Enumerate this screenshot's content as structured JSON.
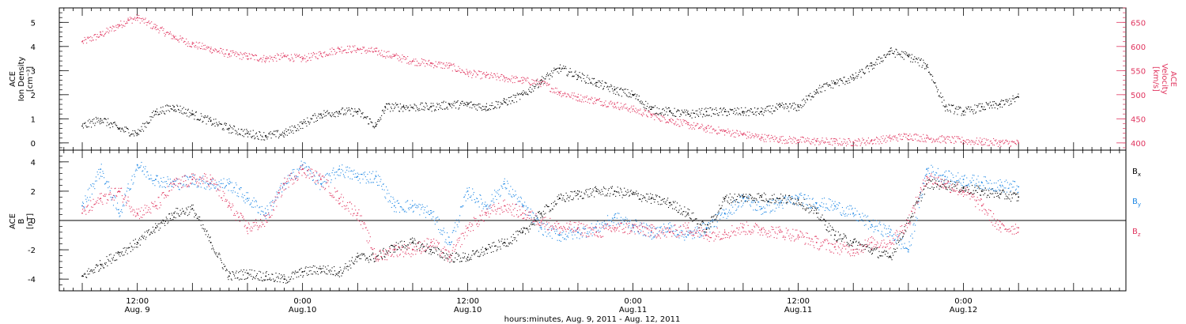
{
  "chart_data": [
    {
      "type": "scatter",
      "panel": "top",
      "ylabel_lines": [
        "ACE",
        "Ion Density",
        "[cm⁻³]"
      ],
      "ylim": [
        -0.3,
        5.6
      ],
      "yticks": [
        0,
        1,
        2,
        3,
        4,
        5
      ],
      "y2label_lines": [
        "ACE",
        "Velocity",
        "[km/s]"
      ],
      "y2lim": [
        385,
        680
      ],
      "y2ticks": [
        400,
        450,
        500,
        550,
        600,
        650
      ],
      "colors": {
        "density": "#000000",
        "velocity": "#e0355f"
      },
      "series": [
        {
          "name": "Ion Density",
          "axis": "left",
          "x": [
            0,
            2,
            4,
            6,
            8,
            10,
            12,
            14,
            16,
            18,
            20,
            22,
            24,
            26,
            28,
            30,
            32,
            33,
            35,
            38,
            40,
            42,
            44,
            46,
            48,
            50,
            52,
            54,
            56,
            58,
            60,
            62,
            64,
            66,
            68,
            70,
            72,
            74,
            76,
            78,
            80,
            82,
            84,
            86,
            88,
            90,
            92,
            94,
            96,
            98,
            100,
            102
          ],
          "y": [
            0.7,
            1.0,
            0.6,
            0.4,
            1.3,
            1.5,
            1.2,
            0.9,
            0.6,
            0.4,
            0.3,
            0.4,
            0.8,
            1.2,
            1.3,
            1.3,
            0.7,
            1.5,
            1.5,
            1.5,
            1.6,
            1.6,
            1.5,
            1.7,
            2.0,
            2.6,
            3.1,
            2.8,
            2.5,
            2.2,
            2.0,
            1.4,
            1.3,
            1.2,
            1.3,
            1.3,
            1.3,
            1.3,
            1.5,
            1.5,
            2.2,
            2.5,
            2.7,
            3.2,
            3.8,
            3.6,
            3.2,
            1.5,
            1.3,
            1.5,
            1.6,
            1.9
          ]
        },
        {
          "name": "Velocity",
          "axis": "right",
          "x": [
            0,
            2,
            4,
            5,
            6,
            8,
            10,
            12,
            14,
            16,
            18,
            20,
            22,
            24,
            26,
            28,
            30,
            32,
            34,
            36,
            38,
            40,
            42,
            44,
            46,
            48,
            50,
            52,
            54,
            56,
            58,
            60,
            62,
            64,
            66,
            68,
            70,
            72,
            74,
            76,
            78,
            80,
            82,
            84,
            86,
            88,
            90,
            92,
            94,
            96,
            98,
            100,
            102
          ],
          "y": [
            610,
            625,
            645,
            655,
            660,
            640,
            620,
            605,
            595,
            585,
            580,
            575,
            580,
            575,
            585,
            595,
            595,
            590,
            580,
            570,
            565,
            560,
            545,
            540,
            535,
            530,
            525,
            505,
            495,
            488,
            480,
            470,
            458,
            448,
            438,
            430,
            424,
            418,
            412,
            408,
            406,
            404,
            403,
            402,
            405,
            410,
            415,
            410,
            408,
            405,
            403,
            401,
            400
          ]
        }
      ]
    },
    {
      "type": "scatter",
      "panel": "bottom",
      "ylabel_lines": [
        "ACE",
        "B",
        "[nT]"
      ],
      "ylim": [
        -4.8,
        4.8
      ],
      "yticks": [
        -4,
        -2,
        0,
        2,
        4
      ],
      "legend_position": "right",
      "colors": {
        "Bx": "#000000",
        "By": "#1f88e5",
        "Bz": "#e0355f"
      },
      "series": [
        {
          "name": "Bx",
          "label_main": "B",
          "label_sub": "x",
          "x": [
            0,
            2,
            4,
            6,
            8,
            10,
            12,
            14,
            16,
            18,
            20,
            22,
            24,
            26,
            28,
            30,
            32,
            34,
            36,
            38,
            40,
            42,
            44,
            46,
            48,
            50,
            52,
            54,
            56,
            58,
            60,
            62,
            64,
            66,
            68,
            70,
            72,
            74,
            76,
            78,
            80,
            82,
            84,
            86,
            88,
            90,
            92,
            94,
            96,
            98,
            100,
            102
          ],
          "y": [
            -3.8,
            -3.0,
            -2.2,
            -1.5,
            -0.5,
            0.5,
            0.8,
            -1.5,
            -3.8,
            -3.6,
            -3.8,
            -4.0,
            -3.5,
            -3.3,
            -3.5,
            -2.5,
            -2.5,
            -1.8,
            -1.5,
            -2.0,
            -2.5,
            -2.5,
            -2.0,
            -1.5,
            -0.8,
            0.5,
            1.5,
            1.8,
            2.0,
            2.0,
            1.8,
            1.5,
            1.2,
            0.5,
            -0.6,
            1.5,
            1.6,
            1.6,
            1.5,
            1.4,
            0.5,
            -1.0,
            -1.5,
            -2.0,
            -2.5,
            0.0,
            2.5,
            2.5,
            2.2,
            2.0,
            1.8,
            1.6
          ]
        },
        {
          "name": "By",
          "label_main": "B",
          "label_sub": "y",
          "x": [
            0,
            2,
            4,
            6,
            8,
            10,
            12,
            14,
            16,
            18,
            20,
            22,
            24,
            26,
            28,
            30,
            32,
            34,
            36,
            38,
            40,
            42,
            44,
            46,
            48,
            50,
            52,
            54,
            56,
            58,
            60,
            62,
            64,
            66,
            68,
            70,
            72,
            74,
            76,
            78,
            80,
            82,
            84,
            86,
            88,
            90,
            92,
            94,
            96,
            98,
            100,
            102
          ],
          "y": [
            1.0,
            3.5,
            0.5,
            3.8,
            2.8,
            2.5,
            2.8,
            2.5,
            2.5,
            1.5,
            0.5,
            2.5,
            3.8,
            2.5,
            3.5,
            3.0,
            3.0,
            1.0,
            1.0,
            0.5,
            -1.5,
            2.0,
            1.0,
            2.5,
            1.0,
            -0.5,
            -1.0,
            -0.8,
            -0.5,
            0.2,
            -0.3,
            -0.8,
            -0.5,
            -1.0,
            -0.5,
            0.5,
            1.5,
            0.8,
            1.2,
            1.5,
            1.2,
            1.0,
            0.5,
            -0.3,
            -0.8,
            -2.0,
            3.5,
            3.0,
            2.8,
            2.6,
            2.4,
            2.3
          ]
        },
        {
          "name": "Bz",
          "label_main": "B",
          "label_sub": "z",
          "x": [
            0,
            2,
            4,
            6,
            8,
            10,
            12,
            14,
            16,
            18,
            20,
            22,
            24,
            26,
            28,
            30,
            32,
            34,
            36,
            38,
            40,
            42,
            44,
            46,
            48,
            50,
            52,
            54,
            56,
            58,
            60,
            62,
            64,
            66,
            68,
            70,
            72,
            74,
            76,
            78,
            80,
            82,
            84,
            86,
            88,
            90,
            92,
            94,
            96,
            98,
            100,
            102
          ],
          "y": [
            0.5,
            1.5,
            2.0,
            0.5,
            1.0,
            2.5,
            2.8,
            2.8,
            1.0,
            -0.5,
            0.0,
            2.5,
            3.5,
            2.8,
            1.5,
            0.5,
            -2.5,
            -2.0,
            -2.0,
            -1.5,
            -2.5,
            -0.5,
            0.5,
            1.0,
            0.5,
            0.0,
            -0.5,
            -0.5,
            -0.8,
            -0.5,
            -0.5,
            -0.7,
            -0.8,
            -0.5,
            -1.0,
            -0.8,
            -0.5,
            -0.6,
            -0.8,
            -1.0,
            -1.5,
            -1.8,
            -2.0,
            -1.5,
            -1.5,
            0.0,
            3.0,
            2.5,
            2.0,
            1.0,
            -0.5,
            -0.5
          ]
        }
      ]
    }
  ],
  "x_axis": {
    "xlim": [
      -2.5,
      113.7
    ],
    "xlabel": "hours:minutes, Aug.  9, 2011 - Aug. 12, 2011",
    "ticks": [
      {
        "x": 6,
        "line1": "12:00",
        "line2": "Aug. 9"
      },
      {
        "x": 24,
        "line1": "0:00",
        "line2": "Aug.10"
      },
      {
        "x": 42,
        "line1": "12:00",
        "line2": "Aug.10"
      },
      {
        "x": 60,
        "line1": "0:00",
        "line2": "Aug.11"
      },
      {
        "x": 78,
        "line1": "12:00",
        "line2": "Aug.11"
      },
      {
        "x": 96,
        "line1": "0:00",
        "line2": "Aug.12"
      }
    ]
  }
}
